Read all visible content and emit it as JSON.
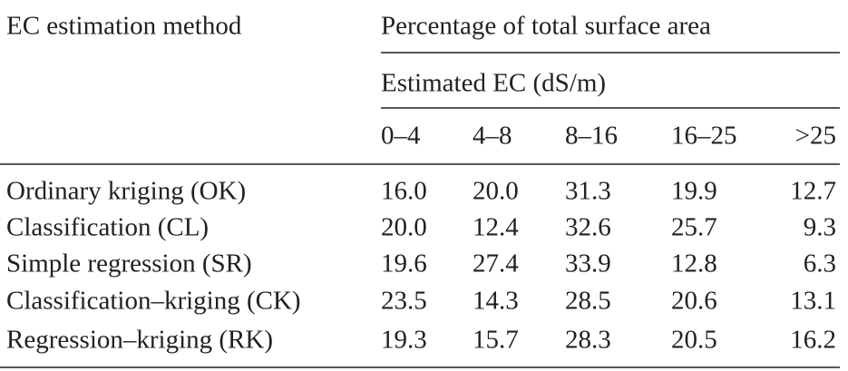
{
  "header": {
    "method": "EC estimation method",
    "group": "Percentage of total surface area",
    "subgroup": "Estimated EC (dS/m)",
    "columns": [
      "0–4",
      "4–8",
      "8–16",
      "16–25",
      ">25"
    ]
  },
  "table": {
    "rows": [
      [
        "Ordinary kriging (OK)",
        "16.0",
        "20.0",
        "31.3",
        "19.9",
        "12.7"
      ],
      [
        "Classification (CL)",
        "20.0",
        "12.4",
        "32.6",
        "25.7",
        "9.3"
      ],
      [
        "Simple regression (SR)",
        "19.6",
        "27.4",
        "33.9",
        "12.8",
        "6.3"
      ],
      [
        "Classification–kriging (CK)",
        "23.5",
        "14.3",
        "28.5",
        "20.6",
        "13.1"
      ],
      [
        "Regression–kriging (RK)",
        "19.3",
        "15.7",
        "28.3",
        "20.5",
        "16.2"
      ]
    ]
  }
}
